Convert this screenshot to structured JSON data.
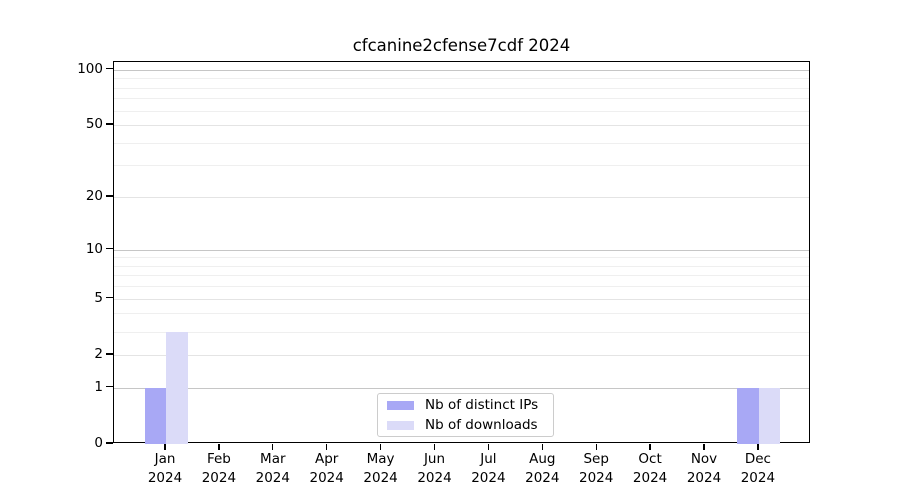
{
  "chart_data": {
    "type": "bar",
    "title": "cfcanine2cfense7cdf 2024",
    "x": {
      "months": [
        "Jan",
        "Feb",
        "Mar",
        "Apr",
        "May",
        "Jun",
        "Jul",
        "Aug",
        "Sep",
        "Oct",
        "Nov",
        "Dec"
      ],
      "year": "2024"
    },
    "series": [
      {
        "name": "Nb of distinct IPs",
        "color": "#a8a8f5",
        "values": [
          1,
          0,
          0,
          0,
          0,
          0,
          0,
          0,
          0,
          0,
          0,
          1
        ]
      },
      {
        "name": "Nb of downloads",
        "color": "#dbdbf8",
        "values": [
          3,
          0,
          0,
          0,
          0,
          0,
          0,
          0,
          0,
          0,
          0,
          1
        ]
      }
    ],
    "yscale": "log1p",
    "ylim": [
      0,
      110
    ],
    "y_major_ticks": [
      0,
      1,
      2,
      5,
      10,
      20,
      50,
      100
    ],
    "y_minor_ticks": [
      3,
      4,
      6,
      7,
      8,
      9,
      30,
      40,
      60,
      70,
      80,
      90
    ],
    "grid": {
      "power_line_values": [
        1,
        10,
        100
      ],
      "power_line_color": "#c6c6c6",
      "major_color": "#e4e4e4",
      "minor_color": "#efefef"
    },
    "legend": {
      "position": "lower center",
      "labels": [
        "Nb of distinct IPs",
        "Nb of downloads"
      ]
    },
    "axis_color": "#000000",
    "background_color": "#ffffff"
  }
}
